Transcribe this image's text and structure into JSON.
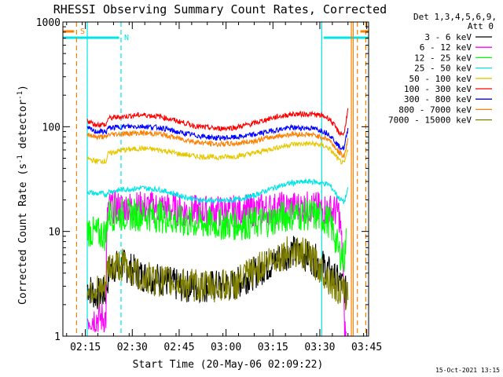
{
  "chart_data": {
    "type": "line",
    "title": "RHESSI Observing Summary Count Rates, Corrected",
    "xlabel": "Start Time (20-May-06 02:09:22)",
    "ylabel": "Corrected Count Rate (s",
    "ylabel_sup": "-1",
    "ylabel_end": " detector",
    "ylabel_sup2": "-1",
    "ylabel_close": ")",
    "yscale": "log",
    "ylim": [
      1,
      1000
    ],
    "xlim_minutes": [
      2.13,
      3.76
    ],
    "y_ticks": [
      {
        "value": 1,
        "label": "1"
      },
      {
        "value": 10,
        "label": "10"
      },
      {
        "value": 100,
        "label": "100"
      },
      {
        "value": 1000,
        "label": "1000"
      }
    ],
    "x_ticks": [
      {
        "value": 2.25,
        "label": "02:15"
      },
      {
        "value": 2.5,
        "label": "02:30"
      },
      {
        "value": 2.75,
        "label": "02:45"
      },
      {
        "value": 3.0,
        "label": "03:00"
      },
      {
        "value": 3.25,
        "label": "03:15"
      },
      {
        "value": 3.5,
        "label": "03:30"
      },
      {
        "value": 3.75,
        "label": "03:45"
      }
    ],
    "legend_header": [
      "Det 1,3,4,5,6,9,",
      "Att 0"
    ],
    "footer_date": "15-Oct-2021 13:15",
    "flags": [
      {
        "label": "S",
        "color": "#ff7f00",
        "segments": [
          [
            2.13,
            2.19
          ],
          [
            3.716,
            3.76
          ]
        ]
      },
      {
        "label": "N",
        "color": "#00e5e5",
        "segments": [
          [
            2.13,
            2.43
          ],
          [
            3.52,
            3.76
          ]
        ]
      }
    ],
    "vlines": [
      {
        "x": 2.203,
        "color": "#ff7f00",
        "dash": true
      },
      {
        "x": 2.26,
        "color": "#00e5e5",
        "dash": false
      },
      {
        "x": 2.44,
        "color": "#00e5e5",
        "dash": true
      },
      {
        "x": 3.51,
        "color": "#00e5e5",
        "dash": false
      },
      {
        "x": 3.668,
        "color": "#ff7f00",
        "dash": false
      },
      {
        "x": 3.678,
        "color": "#ff7f00",
        "dash": false
      },
      {
        "x": 3.7,
        "color": "#ff7f00",
        "dash": true
      },
      {
        "x": 3.745,
        "color": "#ff7f00",
        "dash": true
      }
    ],
    "series": [
      {
        "name": "3 - 6 keV",
        "color": "#000000",
        "x": [
          2.26,
          2.3,
          2.36,
          2.37,
          2.38,
          2.45,
          2.55,
          2.65,
          2.75,
          2.85,
          2.95,
          3.05,
          3.15,
          3.25,
          3.35,
          3.42,
          3.5,
          3.58,
          3.63,
          3.64
        ],
        "y": [
          3.0,
          2.5,
          2.6,
          3.5,
          4.5,
          4.8,
          3.8,
          3.5,
          3.0,
          3.0,
          3.0,
          3.1,
          4.0,
          5.0,
          6.5,
          6.0,
          5.0,
          3.5,
          3.0,
          2.5
        ]
      },
      {
        "name": "6 - 12 keV",
        "color": "#ff00ff",
        "x": [
          2.26,
          2.3,
          2.35,
          2.36,
          2.37,
          2.45,
          2.55,
          2.65,
          2.75,
          2.85,
          2.95,
          3.05,
          3.15,
          3.25,
          3.35,
          3.45,
          3.51,
          3.55,
          3.6,
          3.63,
          3.64
        ],
        "y": [
          1.5,
          1.5,
          1.5,
          1.5,
          17,
          17,
          17,
          17,
          16,
          15.5,
          15.5,
          15.5,
          16,
          16.5,
          17,
          17,
          16.5,
          16,
          15.5,
          1.2,
          1.0
        ]
      },
      {
        "name": "12 - 25 keV",
        "color": "#00ff00",
        "x": [
          2.26,
          2.3,
          2.35,
          2.36,
          2.37,
          2.45,
          2.55,
          2.65,
          2.75,
          2.85,
          2.95,
          3.05,
          3.15,
          3.25,
          3.35,
          3.45,
          3.51,
          3.55,
          3.6,
          3.63,
          3.64
        ],
        "y": [
          10.5,
          9.5,
          9.5,
          9.0,
          14.5,
          14.5,
          14.5,
          14,
          12.5,
          12,
          11.8,
          11.8,
          12,
          13,
          14.5,
          14.5,
          13.5,
          12.5,
          6.5,
          5.5,
          8.0
        ]
      },
      {
        "name": "25 - 50 keV",
        "color": "#00e5e5",
        "x": [
          2.26,
          2.3,
          2.35,
          2.36,
          2.37,
          2.45,
          2.55,
          2.65,
          2.75,
          2.85,
          2.95,
          3.05,
          3.15,
          3.25,
          3.35,
          3.45,
          3.51,
          3.55,
          3.6,
          3.63,
          3.65
        ],
        "y": [
          24,
          23,
          23,
          22,
          24,
          25,
          26,
          25,
          22,
          20,
          19.5,
          20,
          22,
          26,
          29,
          30,
          29,
          28,
          21,
          19,
          25
        ]
      },
      {
        "name": "50 - 100 keV",
        "color": "#e6c800",
        "x": [
          2.26,
          2.3,
          2.35,
          2.36,
          2.37,
          2.45,
          2.55,
          2.65,
          2.75,
          2.85,
          2.95,
          3.05,
          3.15,
          3.25,
          3.35,
          3.45,
          3.51,
          3.55,
          3.6,
          3.63,
          3.65
        ],
        "y": [
          50,
          47,
          47,
          46,
          55,
          60,
          62,
          60,
          55,
          52,
          51,
          52,
          56,
          62,
          68,
          69,
          67,
          62,
          48,
          44,
          60
        ]
      },
      {
        "name": "100 - 300 keV",
        "color": "#ff0000",
        "x": [
          2.26,
          2.3,
          2.35,
          2.36,
          2.37,
          2.45,
          2.55,
          2.65,
          2.75,
          2.85,
          2.95,
          3.05,
          3.15,
          3.25,
          3.35,
          3.45,
          3.51,
          3.55,
          3.6,
          3.63,
          3.65
        ],
        "y": [
          115,
          105,
          105,
          102,
          120,
          125,
          130,
          125,
          112,
          100,
          96,
          98,
          108,
          122,
          132,
          132,
          128,
          120,
          88,
          85,
          145
        ]
      },
      {
        "name": "300 - 800 keV",
        "color": "#0000ff",
        "x": [
          2.26,
          2.3,
          2.35,
          2.36,
          2.37,
          2.45,
          2.55,
          2.65,
          2.75,
          2.85,
          2.95,
          3.05,
          3.15,
          3.25,
          3.35,
          3.45,
          3.51,
          3.55,
          3.6,
          3.63,
          3.65
        ],
        "y": [
          97,
          90,
          90,
          88,
          97,
          100,
          101,
          98,
          88,
          82,
          78,
          79,
          84,
          92,
          98,
          97,
          92,
          85,
          65,
          62,
          95
        ]
      },
      {
        "name": "800 - 7000 keV",
        "color": "#ff7f00",
        "x": [
          2.26,
          2.3,
          2.35,
          2.36,
          2.37,
          2.45,
          2.55,
          2.65,
          2.75,
          2.85,
          2.95,
          3.05,
          3.15,
          3.25,
          3.35,
          3.45,
          3.51,
          3.55,
          3.6,
          3.63,
          3.65
        ],
        "y": [
          86,
          80,
          80,
          78,
          84,
          86,
          87,
          85,
          77,
          71,
          68,
          69,
          73,
          80,
          85,
          84,
          80,
          75,
          57,
          52,
          75
        ]
      },
      {
        "name": "7000 - 15000 keV",
        "color": "#808000",
        "x": [
          2.26,
          2.3,
          2.35,
          2.36,
          2.37,
          2.45,
          2.55,
          2.65,
          2.75,
          2.85,
          2.95,
          3.05,
          3.15,
          3.25,
          3.35,
          3.42,
          3.5,
          3.58,
          3.63,
          3.65
        ],
        "y": [
          3.0,
          2.8,
          2.6,
          3.2,
          4.5,
          4.8,
          3.6,
          3.4,
          3.2,
          3.0,
          3.0,
          3.1,
          4.2,
          5.5,
          6.5,
          6.0,
          4.5,
          3.0,
          2.5,
          2.5
        ]
      }
    ]
  }
}
